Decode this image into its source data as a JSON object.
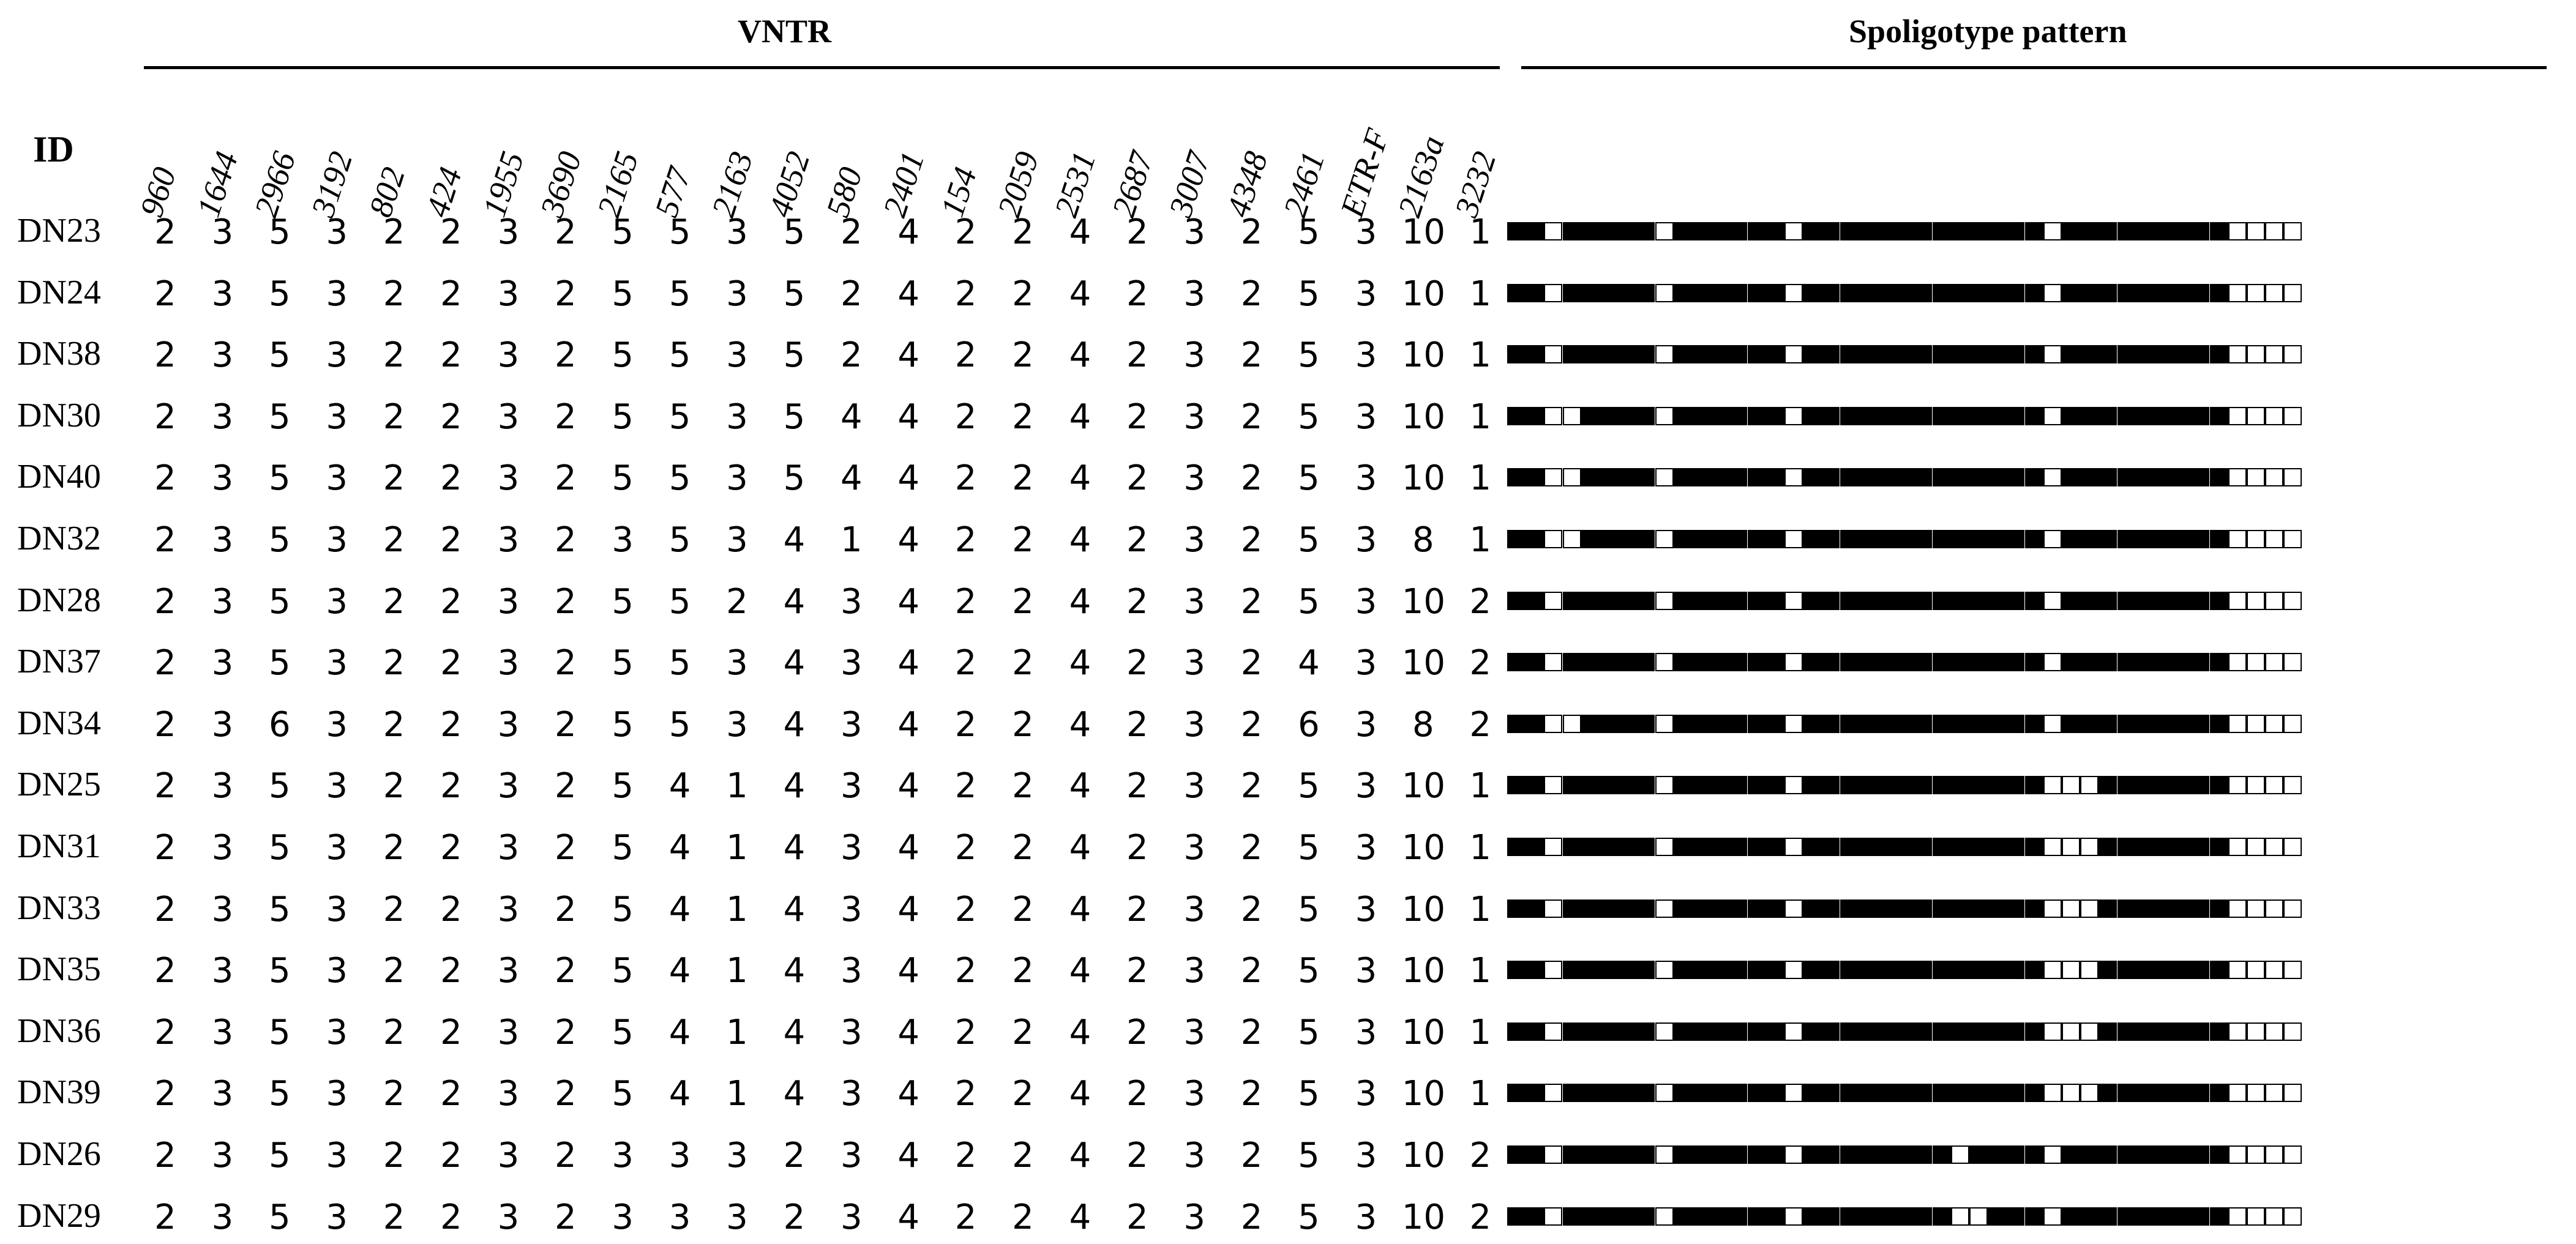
{
  "headers": {
    "vntr": "VNTR",
    "spoligotype": "Spoligotype pattern",
    "id": "ID"
  },
  "columns": [
    "960",
    "1644",
    "2966",
    "3192",
    "802",
    "424",
    "1955",
    "3690",
    "2165",
    "577",
    "2163",
    "4052",
    "580",
    "2401",
    "154",
    "2059",
    "2531",
    "2687",
    "3007",
    "4348",
    "2461",
    "ETR-F",
    "2163a",
    "3232"
  ],
  "rows": [
    {
      "id": "DN23",
      "values": [
        "2",
        "3",
        "5",
        "3",
        "2",
        "2",
        "3",
        "2",
        "5",
        "5",
        "3",
        "5",
        "2",
        "4",
        "2",
        "2",
        "4",
        "2",
        "3",
        "2",
        "5",
        "3",
        "10",
        "1"
      ],
      "spoligotype": "1101111101111110111111111111101111111110000"
    },
    {
      "id": "DN24",
      "values": [
        "2",
        "3",
        "5",
        "3",
        "2",
        "2",
        "3",
        "2",
        "5",
        "5",
        "3",
        "5",
        "2",
        "4",
        "2",
        "2",
        "4",
        "2",
        "3",
        "2",
        "5",
        "3",
        "10",
        "1"
      ],
      "spoligotype": "1101111101111110111111111111101111111110000"
    },
    {
      "id": "DN38",
      "values": [
        "2",
        "3",
        "5",
        "3",
        "2",
        "2",
        "3",
        "2",
        "5",
        "5",
        "3",
        "5",
        "2",
        "4",
        "2",
        "2",
        "4",
        "2",
        "3",
        "2",
        "5",
        "3",
        "10",
        "1"
      ],
      "spoligotype": "1101111101111110111111111111101111111110000"
    },
    {
      "id": "DN30",
      "values": [
        "2",
        "3",
        "5",
        "3",
        "2",
        "2",
        "3",
        "2",
        "5",
        "5",
        "3",
        "5",
        "4",
        "4",
        "2",
        "2",
        "4",
        "2",
        "3",
        "2",
        "5",
        "3",
        "10",
        "1"
      ],
      "spoligotype": "1100111101111110111111111111101111111110000"
    },
    {
      "id": "DN40",
      "values": [
        "2",
        "3",
        "5",
        "3",
        "2",
        "2",
        "3",
        "2",
        "5",
        "5",
        "3",
        "5",
        "4",
        "4",
        "2",
        "2",
        "4",
        "2",
        "3",
        "2",
        "5",
        "3",
        "10",
        "1"
      ],
      "spoligotype": "1100111101111110111111111111101111111110000"
    },
    {
      "id": "DN32",
      "values": [
        "2",
        "3",
        "5",
        "3",
        "2",
        "2",
        "3",
        "2",
        "3",
        "5",
        "3",
        "4",
        "1",
        "4",
        "2",
        "2",
        "4",
        "2",
        "3",
        "2",
        "5",
        "3",
        "8",
        "1"
      ],
      "spoligotype": "1100111101111110111111111111101111111110000"
    },
    {
      "id": "DN28",
      "values": [
        "2",
        "3",
        "5",
        "3",
        "2",
        "2",
        "3",
        "2",
        "5",
        "5",
        "2",
        "4",
        "3",
        "4",
        "2",
        "2",
        "4",
        "2",
        "3",
        "2",
        "5",
        "3",
        "10",
        "2"
      ],
      "spoligotype": "1101111101111110111111111111101111111110000"
    },
    {
      "id": "DN37",
      "values": [
        "2",
        "3",
        "5",
        "3",
        "2",
        "2",
        "3",
        "2",
        "5",
        "5",
        "3",
        "4",
        "3",
        "4",
        "2",
        "2",
        "4",
        "2",
        "3",
        "2",
        "4",
        "3",
        "10",
        "2"
      ],
      "spoligotype": "1101111101111110111111111111101111111110000"
    },
    {
      "id": "DN34",
      "values": [
        "2",
        "3",
        "6",
        "3",
        "2",
        "2",
        "3",
        "2",
        "5",
        "5",
        "3",
        "4",
        "3",
        "4",
        "2",
        "2",
        "4",
        "2",
        "3",
        "2",
        "6",
        "3",
        "8",
        "2"
      ],
      "spoligotype": "1100111101111110111111111111101111111110000"
    },
    {
      "id": "DN25",
      "values": [
        "2",
        "3",
        "5",
        "3",
        "2",
        "2",
        "3",
        "2",
        "5",
        "4",
        "1",
        "4",
        "3",
        "4",
        "2",
        "2",
        "4",
        "2",
        "3",
        "2",
        "5",
        "3",
        "10",
        "1"
      ],
      "spoligotype": "1101111101111110111111111111100011111110000"
    },
    {
      "id": "DN31",
      "values": [
        "2",
        "3",
        "5",
        "3",
        "2",
        "2",
        "3",
        "2",
        "5",
        "4",
        "1",
        "4",
        "3",
        "4",
        "2",
        "2",
        "4",
        "2",
        "3",
        "2",
        "5",
        "3",
        "10",
        "1"
      ],
      "spoligotype": "1101111101111110111111111111100011111110000"
    },
    {
      "id": "DN33",
      "values": [
        "2",
        "3",
        "5",
        "3",
        "2",
        "2",
        "3",
        "2",
        "5",
        "4",
        "1",
        "4",
        "3",
        "4",
        "2",
        "2",
        "4",
        "2",
        "3",
        "2",
        "5",
        "3",
        "10",
        "1"
      ],
      "spoligotype": "1101111101111110111111111111100011111110000"
    },
    {
      "id": "DN35",
      "values": [
        "2",
        "3",
        "5",
        "3",
        "2",
        "2",
        "3",
        "2",
        "5",
        "4",
        "1",
        "4",
        "3",
        "4",
        "2",
        "2",
        "4",
        "2",
        "3",
        "2",
        "5",
        "3",
        "10",
        "1"
      ],
      "spoligotype": "1101111101111110111111111111100011111110000"
    },
    {
      "id": "DN36",
      "values": [
        "2",
        "3",
        "5",
        "3",
        "2",
        "2",
        "3",
        "2",
        "5",
        "4",
        "1",
        "4",
        "3",
        "4",
        "2",
        "2",
        "4",
        "2",
        "3",
        "2",
        "5",
        "3",
        "10",
        "1"
      ],
      "spoligotype": "1101111101111110111111111111100011111110000"
    },
    {
      "id": "DN39",
      "values": [
        "2",
        "3",
        "5",
        "3",
        "2",
        "2",
        "3",
        "2",
        "5",
        "4",
        "1",
        "4",
        "3",
        "4",
        "2",
        "2",
        "4",
        "2",
        "3",
        "2",
        "5",
        "3",
        "10",
        "1"
      ],
      "spoligotype": "1101111101111110111111111111100011111110000"
    },
    {
      "id": "DN26",
      "values": [
        "2",
        "3",
        "5",
        "3",
        "2",
        "2",
        "3",
        "2",
        "3",
        "3",
        "3",
        "2",
        "3",
        "4",
        "2",
        "2",
        "4",
        "2",
        "3",
        "2",
        "5",
        "3",
        "10",
        "2"
      ],
      "spoligotype": "1101111101111110111111110111101111111110000"
    },
    {
      "id": "DN29",
      "values": [
        "2",
        "3",
        "5",
        "3",
        "2",
        "2",
        "3",
        "2",
        "3",
        "3",
        "3",
        "2",
        "3",
        "4",
        "2",
        "2",
        "4",
        "2",
        "3",
        "2",
        "5",
        "3",
        "10",
        "2"
      ],
      "spoligotype": "1101111101111110111111110011101111111110000"
    }
  ]
}
